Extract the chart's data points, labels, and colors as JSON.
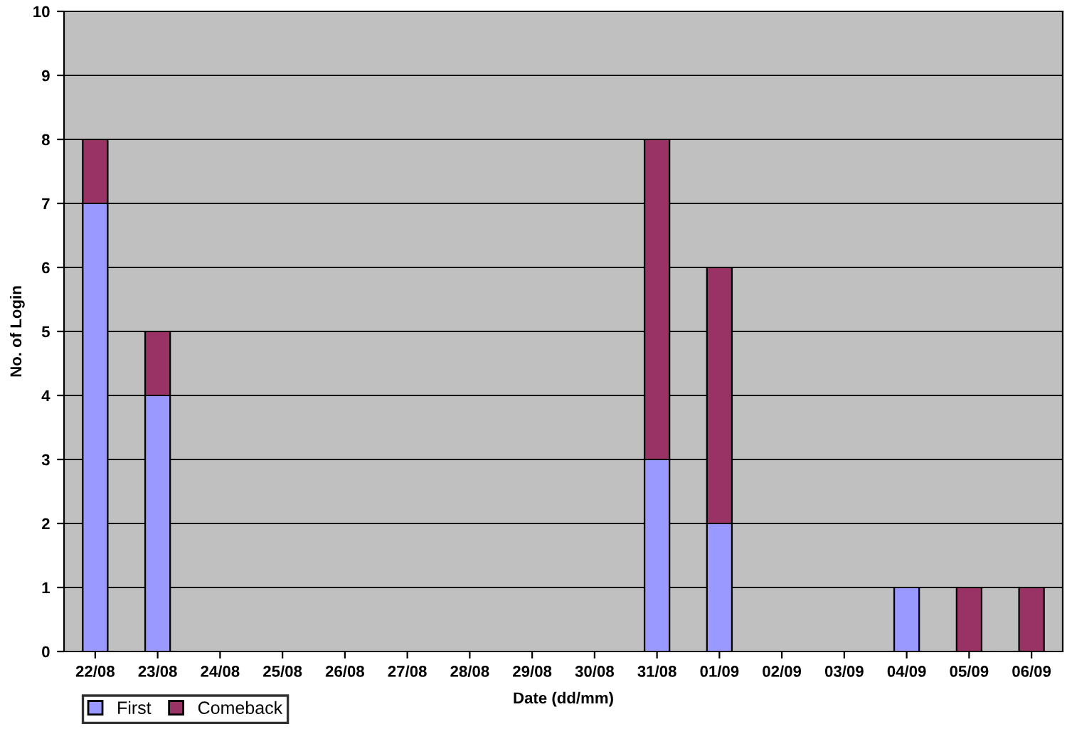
{
  "chart_data": {
    "type": "bar",
    "stacked": true,
    "xlabel": "Date (dd/mm)",
    "ylabel": "No. of Login",
    "categories": [
      "22/08",
      "23/08",
      "24/08",
      "25/08",
      "26/08",
      "27/08",
      "28/08",
      "29/08",
      "30/08",
      "31/08",
      "01/09",
      "02/09",
      "03/09",
      "04/09",
      "05/09",
      "06/09"
    ],
    "series": [
      {
        "name": "First",
        "color": "#9999ff",
        "values": [
          7,
          4,
          0,
          0,
          0,
          0,
          0,
          0,
          0,
          3,
          2,
          0,
          0,
          1,
          0,
          0
        ]
      },
      {
        "name": "Comeback",
        "color": "#993366",
        "values": [
          1,
          1,
          0,
          0,
          0,
          0,
          0,
          0,
          0,
          5,
          4,
          0,
          0,
          0,
          1,
          1
        ]
      }
    ],
    "ylim": [
      0,
      10
    ],
    "yticks": [
      0,
      1,
      2,
      3,
      4,
      5,
      6,
      7,
      8,
      9,
      10
    ],
    "grid": "y",
    "legend": "bottom left"
  }
}
